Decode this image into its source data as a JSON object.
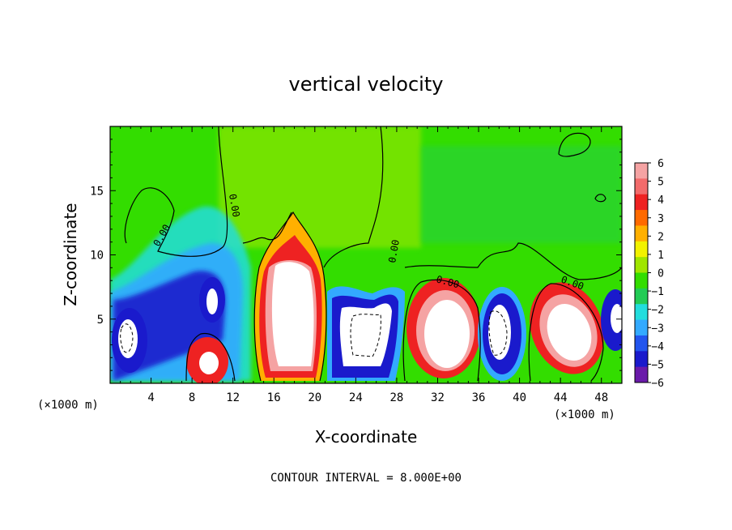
{
  "chart_data": {
    "type": "heatmap",
    "title": "vertical velocity",
    "xlabel": "X-coordinate",
    "ylabel": "Z-coordinate",
    "x_unit": "(×1000 m)",
    "x_unit_left": "(×1000 m)",
    "x_ticks": [
      4,
      8,
      12,
      16,
      20,
      24,
      28,
      32,
      36,
      40,
      44,
      48
    ],
    "y_ticks": [
      5,
      10,
      15
    ],
    "xlim": [
      0,
      50
    ],
    "ylim": [
      0,
      20
    ],
    "footer": "CONTOUR INTERVAL = 8.000E+00",
    "contour_label": "0.00",
    "colorbar": {
      "ticks": [
        "6",
        "5",
        "4",
        "3",
        "2",
        "1",
        "0",
        "−1",
        "−2",
        "−3",
        "−4",
        "−5",
        "−6"
      ],
      "colors": [
        "#f5a3a3",
        "#f26b6b",
        "#ee2222",
        "#ff6a00",
        "#ffb000",
        "#f2f200",
        "#a0e600",
        "#33dd00",
        "#22cc55",
        "#22dddd",
        "#33aaff",
        "#2255ee",
        "#1a1acc",
        "#6a1aaa"
      ]
    },
    "features": [
      {
        "kind": "updraft",
        "x": 18.5,
        "z": 6.5,
        "value": 6
      },
      {
        "kind": "downdraft",
        "x": 26,
        "z": 4,
        "value": -6
      },
      {
        "kind": "updraft",
        "x": 33,
        "z": 4,
        "value": 6
      },
      {
        "kind": "downdraft",
        "x": 38.5,
        "z": 4,
        "value": -6
      },
      {
        "kind": "updraft",
        "x": 44,
        "z": 4,
        "value": 6
      },
      {
        "kind": "downdraft",
        "x": 10,
        "z": 7,
        "value": -5
      },
      {
        "kind": "updraft",
        "x": 9.5,
        "z": 1.5,
        "value": 5
      },
      {
        "kind": "downdraft",
        "x": 2,
        "z": 3.5,
        "value": -6
      },
      {
        "kind": "downdraft",
        "x": 49.5,
        "z": 5,
        "value": -6
      }
    ]
  }
}
